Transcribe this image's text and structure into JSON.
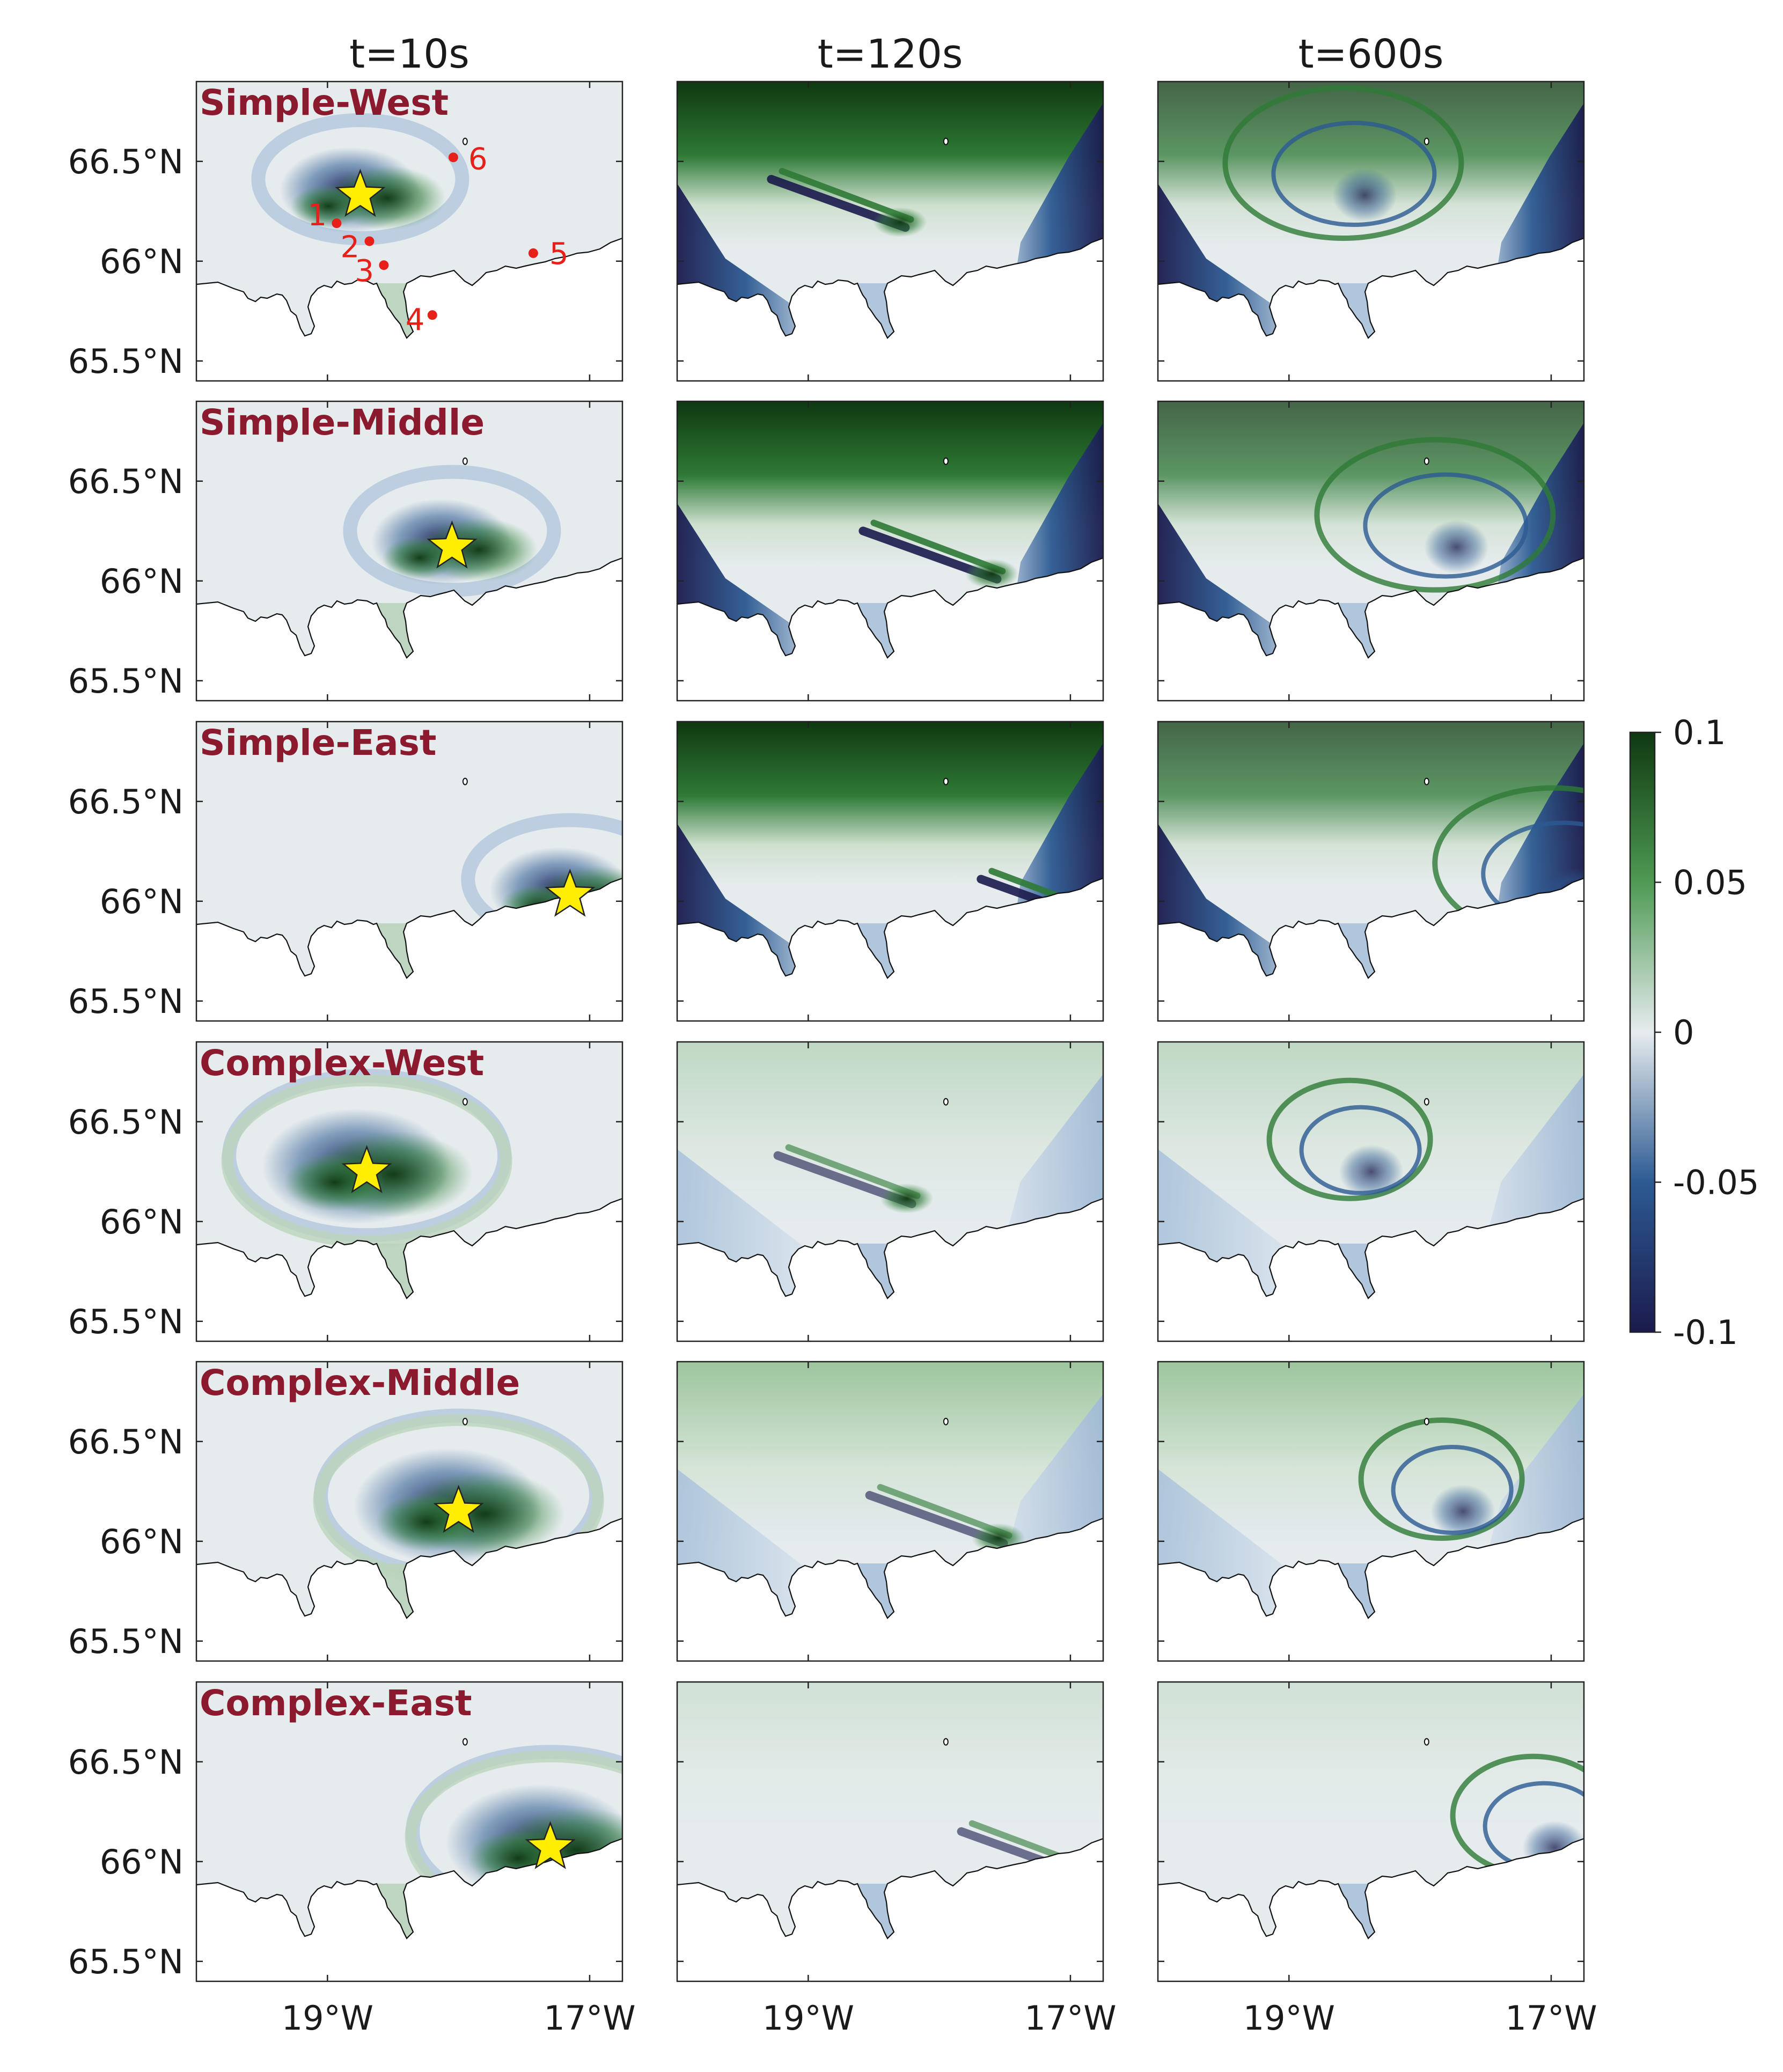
{
  "chart_data": {
    "type": "heatmap",
    "columns": [
      "t=10s",
      "t=120s",
      "t=600s"
    ],
    "rows": [
      "Simple-West",
      "Simple-Middle",
      "Simple-East",
      "Complex-West",
      "Complex-Middle",
      "Complex-East"
    ],
    "lon_range": [
      -20.0,
      -16.75
    ],
    "lat_range": [
      65.4,
      66.9
    ],
    "y_ticks": [
      66.5,
      66.0,
      65.5
    ],
    "y_tick_labels": [
      "66.5°N",
      "66°N",
      "65.5°N"
    ],
    "x_ticks": [
      -19.0,
      -17.0
    ],
    "x_tick_labels": [
      "19°W",
      "17°W"
    ],
    "colorbar": {
      "min": -0.1,
      "max": 0.1,
      "ticks": [
        0.1,
        0.05,
        0,
        -0.05,
        -0.1
      ],
      "tick_labels": [
        "0.1",
        "0.05",
        "0",
        "-0.05",
        "-0.1"
      ],
      "colors": [
        "#1b1b4d",
        "#2c5a92",
        "#e6ecee",
        "#4e9a53",
        "#0f3810"
      ]
    },
    "sources": {
      "Simple-West": {
        "lon": -18.75,
        "lat": 66.33
      },
      "Simple-Middle": {
        "lon": -18.05,
        "lat": 66.17
      },
      "Simple-East": {
        "lon": -17.15,
        "lat": 66.03
      },
      "Complex-West": {
        "lon": -18.7,
        "lat": 66.25
      },
      "Complex-Middle": {
        "lon": -18.0,
        "lat": 66.15
      },
      "Complex-East": {
        "lon": -17.3,
        "lat": 66.07
      }
    },
    "stations": [
      {
        "label": "1",
        "lon": -18.93,
        "lat": 66.19
      },
      {
        "label": "2",
        "lon": -18.68,
        "lat": 66.1
      },
      {
        "label": "3",
        "lon": -18.57,
        "lat": 65.98
      },
      {
        "label": "4",
        "lon": -18.2,
        "lat": 65.73
      },
      {
        "label": "5",
        "lon": -17.43,
        "lat": 66.04
      },
      {
        "label": "6",
        "lon": -18.04,
        "lat": 66.52
      }
    ],
    "colors": {
      "row_label": "#8b1a2e",
      "station": "#e8201a",
      "star": "#ffee00"
    }
  }
}
